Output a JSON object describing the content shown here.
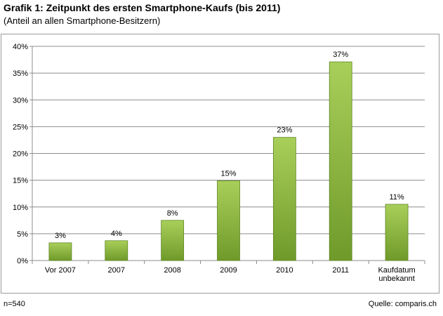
{
  "title": "Grafik 1: Zeitpunkt des ersten Smartphone-Kaufs (bis 2011)",
  "subtitle": "(Anteil an allen Smartphone-Besitzern)",
  "footer": {
    "sample": "n=540",
    "source": "Quelle: comparis.ch"
  },
  "chart_data": {
    "type": "bar",
    "title": "Grafik 1: Zeitpunkt des ersten Smartphone-Kaufs (bis 2011)",
    "subtitle": "(Anteil an allen Smartphone-Besitzern)",
    "xlabel": "",
    "ylabel": "",
    "categories": [
      [
        "Vor 2007"
      ],
      [
        "2007"
      ],
      [
        "2008"
      ],
      [
        "2009"
      ],
      [
        "2010"
      ],
      [
        "2011"
      ],
      [
        "Kaufdatum",
        "unbekannt"
      ]
    ],
    "values": [
      3.3,
      3.7,
      7.5,
      14.9,
      23.0,
      37.1,
      10.5
    ],
    "data_labels": [
      "3%",
      "4%",
      "8%",
      "15%",
      "23%",
      "37%",
      "11%"
    ],
    "ylim": [
      0,
      40
    ],
    "yticks": [
      0,
      5,
      10,
      15,
      20,
      25,
      30,
      35,
      40
    ],
    "ytick_labels": [
      "0%",
      "5%",
      "10%",
      "15%",
      "20%",
      "25%",
      "30%",
      "35%",
      "40%"
    ],
    "grid": true,
    "legend": false,
    "colors": {
      "bar_light": "#a9cf5a",
      "bar_dark": "#6f9a2a",
      "grid": "#8c8c8c"
    }
  }
}
